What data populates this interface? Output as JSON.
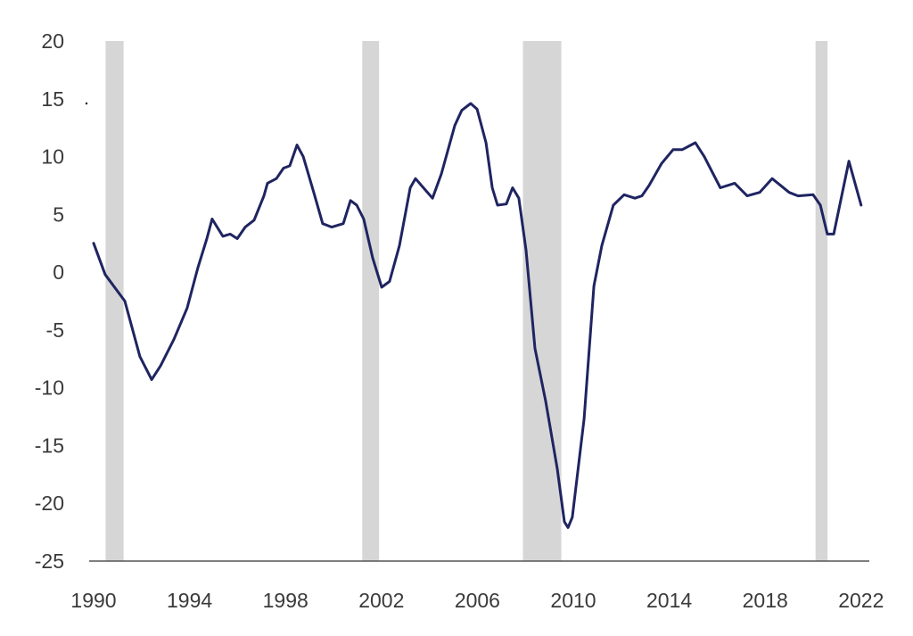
{
  "chart_data": {
    "type": "line",
    "title": "",
    "xlabel": "",
    "ylabel": "",
    "xlim": [
      1990,
      2022
    ],
    "ylim": [
      -25,
      20
    ],
    "grid": false,
    "line_color": "#1f2461",
    "shade_color": "#d6d6d6",
    "x_ticks": [
      1990,
      1994,
      1998,
      2002,
      2006,
      2010,
      2014,
      2018,
      2022
    ],
    "x_tick_labels": [
      "1990",
      "1994",
      "1998",
      "2002",
      "2006",
      "2010",
      "2014",
      "2018",
      "2022"
    ],
    "y_ticks": [
      20,
      15,
      10,
      5,
      0,
      -5,
      -10,
      -15,
      -20,
      -25
    ],
    "y_tick_labels": [
      "20",
      "15",
      "10",
      "5",
      "0",
      "-5",
      "-10",
      "-15",
      "-20",
      "-25"
    ],
    "recessions": [
      [
        1990.5,
        1991.25
      ],
      [
        2001.2,
        2001.9
      ],
      [
        2007.9,
        2009.5
      ],
      [
        2020.1,
        2020.6
      ]
    ],
    "series": [
      {
        "name": "series",
        "x": [
          1990.0,
          1990.48,
          1991.3,
          1991.93,
          1992.42,
          1992.79,
          1993.35,
          1993.9,
          1994.35,
          1994.72,
          1994.94,
          1995.39,
          1995.69,
          1995.99,
          1996.32,
          1996.69,
          1997.1,
          1997.25,
          1997.62,
          1997.92,
          1998.18,
          1998.48,
          1998.74,
          1999.18,
          1999.55,
          1999.93,
          2000.41,
          2000.71,
          2000.97,
          2001.26,
          2001.64,
          2002.01,
          2002.34,
          2002.75,
          2003.2,
          2003.42,
          2003.75,
          2004.13,
          2004.5,
          2005.06,
          2005.35,
          2005.72,
          2005.99,
          2006.36,
          2006.62,
          2006.84,
          2007.21,
          2007.47,
          2007.73,
          2008.03,
          2008.4,
          2008.85,
          2009.33,
          2009.63,
          2009.78,
          2009.96,
          2010.45,
          2010.86,
          2011.19,
          2011.67,
          2012.12,
          2012.57,
          2012.86,
          2013.16,
          2013.68,
          2014.16,
          2014.54,
          2015.09,
          2015.46,
          2016.13,
          2016.73,
          2017.25,
          2017.77,
          2018.29,
          2019.0,
          2019.37,
          2020.0,
          2020.3,
          2020.59,
          2020.86,
          2021.49,
          2022.0
        ],
        "y": [
          2.5,
          -0.2,
          -2.5,
          -7.3,
          -9.3,
          -8.1,
          -5.8,
          -3.1,
          0.4,
          2.9,
          4.6,
          3.1,
          3.3,
          2.9,
          3.9,
          4.5,
          6.6,
          7.7,
          8.1,
          9.0,
          9.2,
          11.0,
          10.0,
          6.9,
          4.2,
          3.9,
          4.2,
          6.2,
          5.8,
          4.6,
          1.2,
          -1.3,
          -0.8,
          2.3,
          7.3,
          8.1,
          7.3,
          6.4,
          8.5,
          12.7,
          14.0,
          14.6,
          14.1,
          11.2,
          7.3,
          5.8,
          5.9,
          7.3,
          6.4,
          1.9,
          -6.6,
          -11.2,
          -17.0,
          -21.6,
          -22.1,
          -21.2,
          -12.7,
          -1.2,
          2.3,
          5.8,
          6.7,
          6.4,
          6.6,
          7.5,
          9.4,
          10.6,
          10.6,
          11.2,
          10.0,
          7.3,
          7.7,
          6.6,
          6.9,
          8.1,
          6.9,
          6.6,
          6.7,
          5.8,
          3.3,
          3.3,
          9.6,
          5.8
        ]
      }
    ]
  }
}
